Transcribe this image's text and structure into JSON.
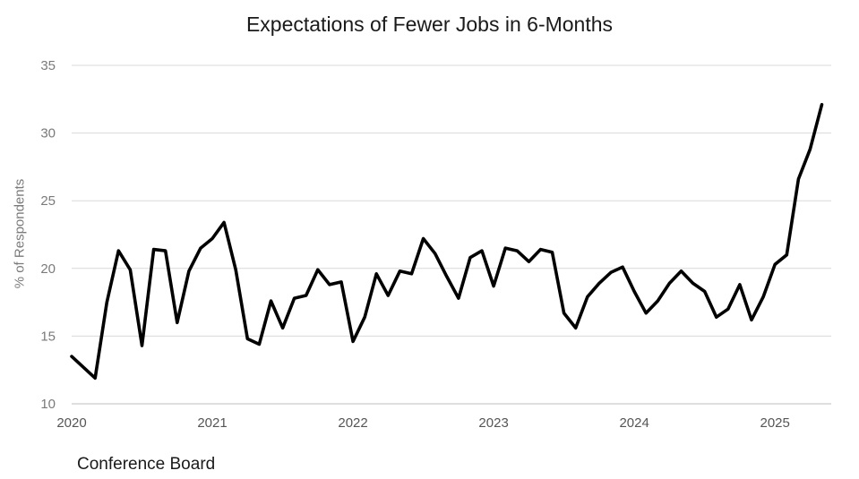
{
  "chart_data": {
    "type": "line",
    "title": "Expectations of Fewer Jobs in 6-Months",
    "xlabel": "",
    "ylabel": "% of Respondents",
    "source": "Conference Board",
    "ylim": [
      10,
      35
    ],
    "yticks": [
      10,
      15,
      20,
      25,
      30,
      35
    ],
    "xticks": [
      "2020",
      "2021",
      "2022",
      "2023",
      "2024",
      "2025"
    ],
    "x_start": "2020-01",
    "x_end": "2025-04",
    "grid": "horizontal",
    "line_color": "#000000",
    "grid_color": "#d9d9d9",
    "series": [
      {
        "name": "Expectations of Fewer Jobs in 6-Months",
        "values": [
          13.5,
          12.7,
          11.9,
          17.5,
          21.3,
          19.9,
          14.3,
          21.4,
          21.3,
          16.0,
          19.8,
          21.5,
          22.2,
          23.4,
          19.9,
          14.8,
          14.4,
          17.6,
          15.6,
          17.8,
          18.0,
          19.9,
          18.8,
          19.0,
          14.6,
          16.4,
          19.6,
          18.0,
          19.8,
          19.6,
          22.2,
          21.1,
          19.4,
          17.8,
          20.8,
          21.3,
          18.7,
          21.5,
          21.3,
          20.5,
          21.4,
          21.2,
          16.7,
          15.6,
          17.9,
          18.9,
          19.7,
          20.1,
          18.3,
          16.7,
          17.6,
          18.9,
          19.8,
          18.9,
          18.3,
          16.4,
          17.0,
          18.8,
          16.2,
          17.9,
          20.3,
          21.0,
          26.6,
          28.8,
          32.1
        ]
      }
    ]
  }
}
